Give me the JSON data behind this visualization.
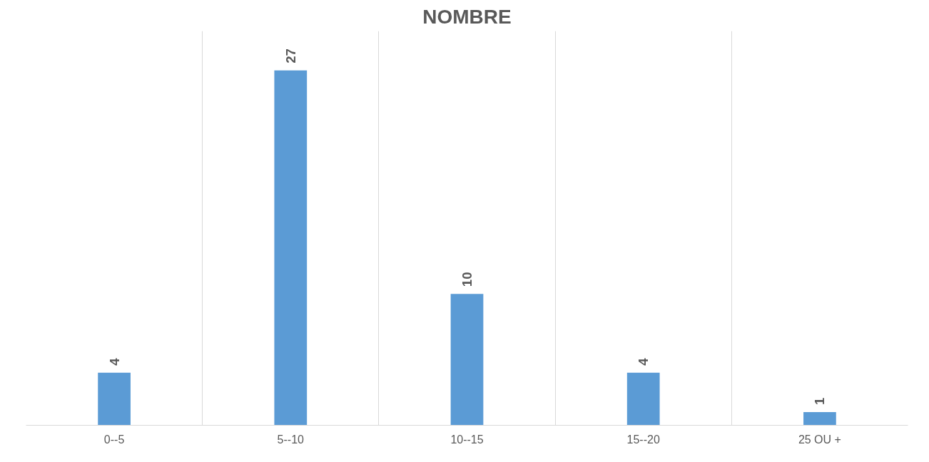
{
  "chart_data": {
    "type": "bar",
    "title": "NOMBRE",
    "categories": [
      "0--5",
      "5--10",
      "10--15",
      "15--20",
      "25 OU +"
    ],
    "values": [
      4,
      27,
      10,
      4,
      1
    ],
    "color": "#5b9bd5",
    "ylim": [
      0,
      30
    ],
    "tick_labels": "x",
    "data_labels": true,
    "grid": "x"
  }
}
